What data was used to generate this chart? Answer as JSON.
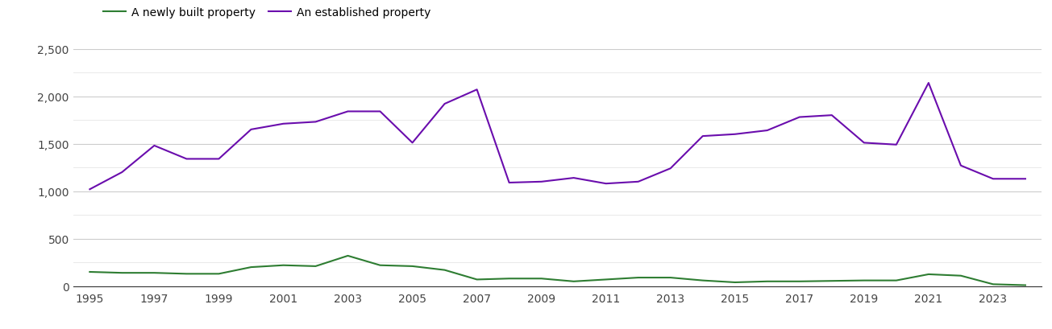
{
  "years": [
    1995,
    1996,
    1997,
    1998,
    1999,
    2000,
    2001,
    2002,
    2003,
    2004,
    2005,
    2006,
    2007,
    2008,
    2009,
    2010,
    2011,
    2012,
    2013,
    2014,
    2015,
    2016,
    2017,
    2018,
    2019,
    2020,
    2021,
    2022,
    2023,
    2024
  ],
  "new_homes": [
    150,
    140,
    140,
    130,
    130,
    200,
    220,
    210,
    320,
    220,
    210,
    170,
    70,
    80,
    80,
    50,
    70,
    90,
    90,
    60,
    40,
    50,
    50,
    55,
    60,
    60,
    125,
    110,
    20,
    10
  ],
  "established_homes": [
    1020,
    1200,
    1480,
    1340,
    1340,
    1650,
    1710,
    1730,
    1840,
    1840,
    1510,
    1920,
    2070,
    1090,
    1100,
    1140,
    1080,
    1100,
    1240,
    1580,
    1600,
    1640,
    1780,
    1800,
    1510,
    1490,
    2140,
    1270,
    1130,
    1130
  ],
  "new_homes_color": "#2e7d32",
  "established_homes_color": "#6a0dad",
  "new_homes_label": "A newly built property",
  "established_homes_label": "An established property",
  "ylim": [
    0,
    2500
  ],
  "yticks_major": [
    0,
    500,
    1000,
    1500,
    2000,
    2500
  ],
  "yticks_minor": [
    250,
    750,
    1250,
    1750,
    2250
  ],
  "xticks": [
    1995,
    1997,
    1999,
    2001,
    2003,
    2005,
    2007,
    2009,
    2011,
    2013,
    2015,
    2017,
    2019,
    2021,
    2023
  ],
  "xlim": [
    1994.5,
    2024.5
  ],
  "background_color": "#ffffff",
  "grid_color_major": "#cccccc",
  "grid_color_minor": "#e5e5e5",
  "line_width": 1.5,
  "legend_fontsize": 10,
  "tick_fontsize": 10,
  "tick_color": "#444444"
}
